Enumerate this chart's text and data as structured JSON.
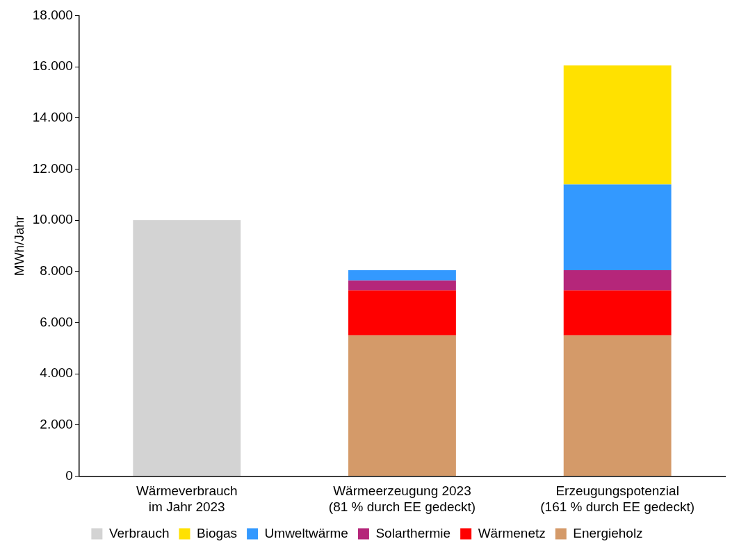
{
  "chart_data": {
    "type": "bar",
    "stacked": true,
    "ylabel": "MWh/Jahr",
    "categories": [
      "Wärmeverbrauch\nim Jahr 2023",
      "Wärmeerzeugung 2023\n(81 % durch EE gedeckt)",
      "Erzeugungspotenzial\n(161 % durch EE gedeckt)"
    ],
    "series": [
      {
        "name": "Energieholz",
        "color": "#d49a69",
        "values": [
          null,
          5500,
          5500
        ]
      },
      {
        "name": "Wärmenetz",
        "color": "#ff0000",
        "values": [
          null,
          1750,
          1750
        ]
      },
      {
        "name": "Solarthermie",
        "color": "#b5267a",
        "values": [
          null,
          400,
          800
        ]
      },
      {
        "name": "Umweltwärme",
        "color": "#3399ff",
        "values": [
          null,
          400,
          3350
        ]
      },
      {
        "name": "Biogas",
        "color": "#ffe100",
        "values": [
          null,
          null,
          4650
        ]
      },
      {
        "name": "Verbrauch",
        "color": "#d3d3d3",
        "values": [
          10000,
          null,
          null
        ]
      }
    ],
    "ylim": [
      0,
      18000
    ],
    "yticks": [
      {
        "value": 0,
        "label": "0"
      },
      {
        "value": 2000,
        "label": "2.000"
      },
      {
        "value": 4000,
        "label": "4.000"
      },
      {
        "value": 6000,
        "label": "6.000"
      },
      {
        "value": 8000,
        "label": "8.000"
      },
      {
        "value": 10000,
        "label": "10.000"
      },
      {
        "value": 12000,
        "label": "12.000"
      },
      {
        "value": 14000,
        "label": "14.000"
      },
      {
        "value": 16000,
        "label": "16.000"
      },
      {
        "value": 18000,
        "label": "18.000"
      }
    ],
    "grid": false,
    "legend": "bottom"
  }
}
